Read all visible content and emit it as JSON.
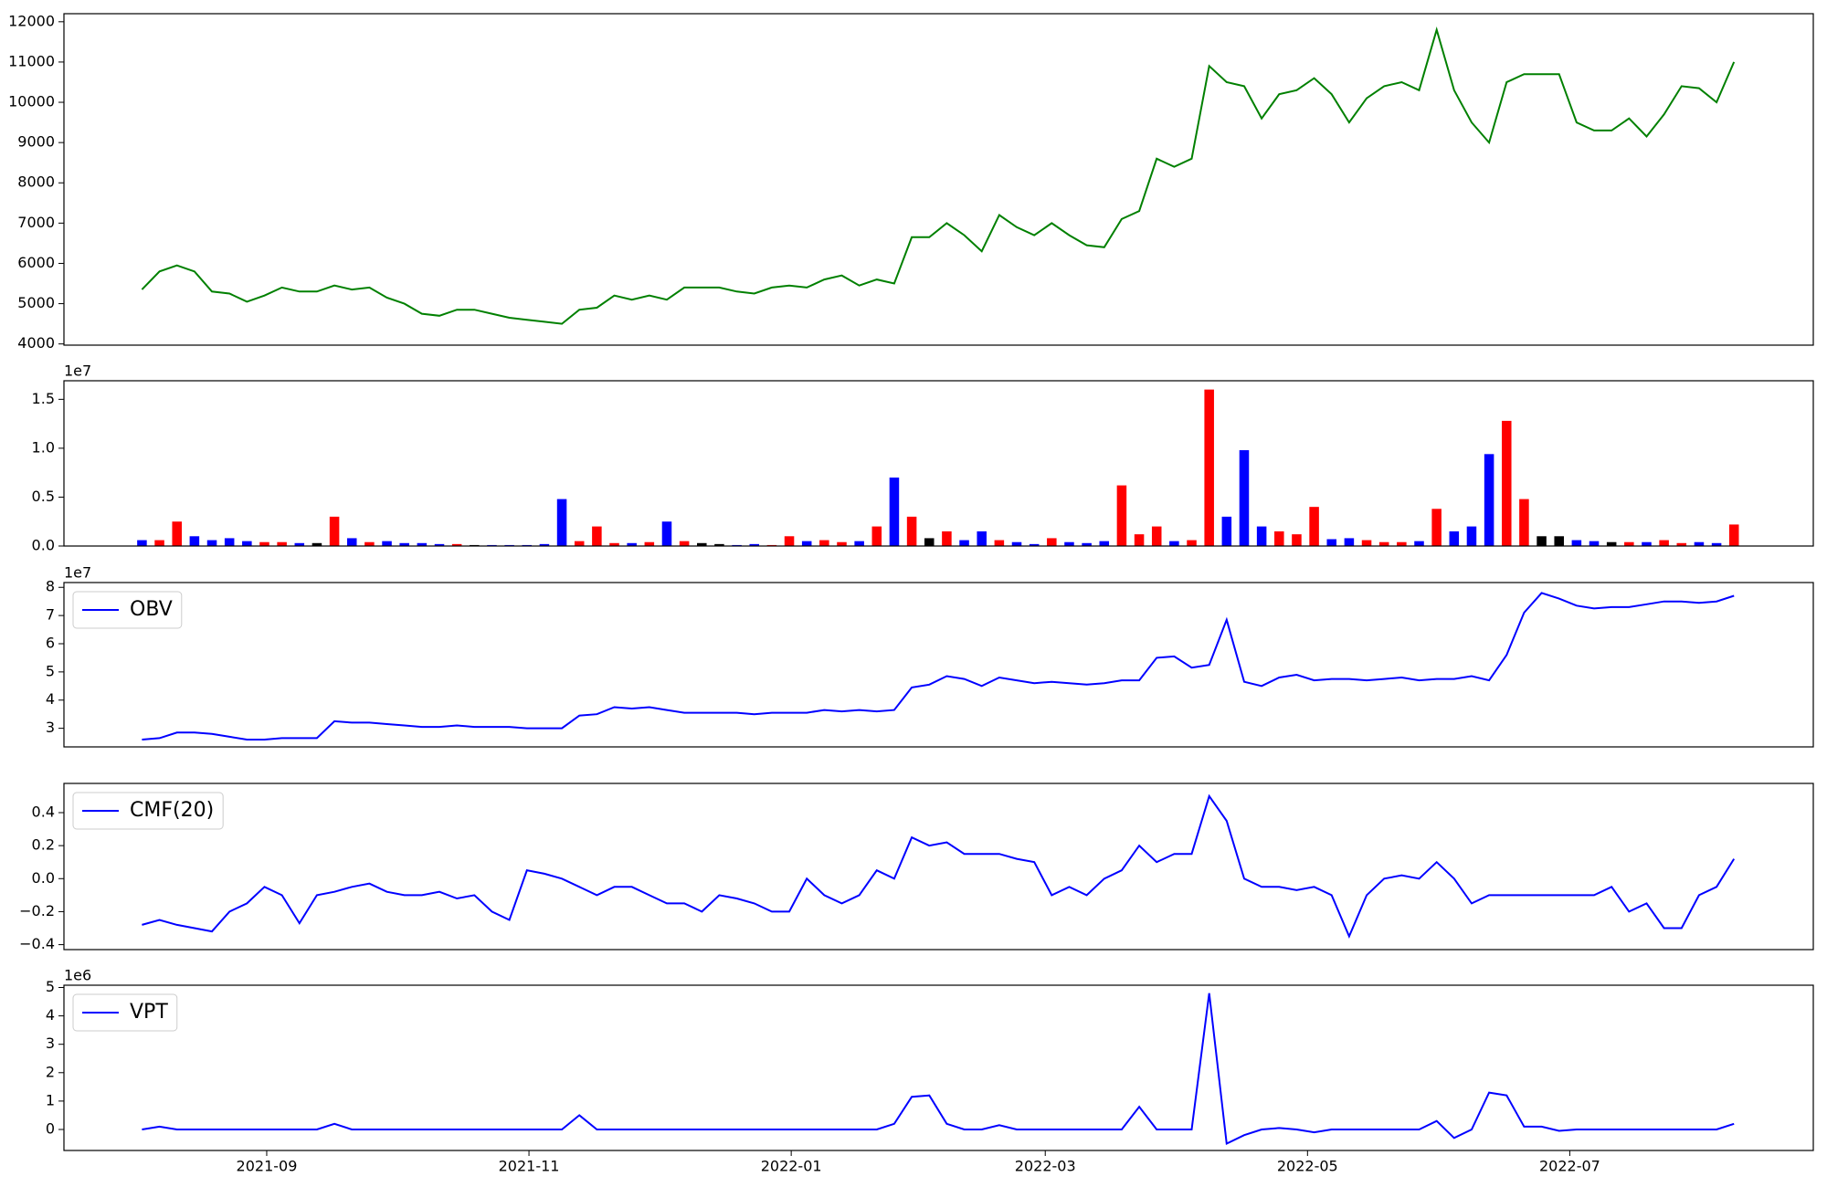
{
  "chart_data": [
    {
      "type": "line",
      "color": "green",
      "xlim": [
        -4.46,
        95.53
      ],
      "ylim": [
        3970,
        12200
      ],
      "yticks": [
        4000,
        5000,
        6000,
        7000,
        8000,
        9000,
        10000,
        11000,
        12000
      ],
      "values": [
        5350,
        5800,
        5950,
        5800,
        5300,
        5250,
        5050,
        5200,
        5400,
        5300,
        5300,
        5450,
        5350,
        5400,
        5150,
        5000,
        4750,
        4700,
        4850,
        4850,
        4750,
        4650,
        4600,
        4550,
        4500,
        4850,
        4900,
        5200,
        5100,
        5200,
        5100,
        5400,
        5400,
        5400,
        5300,
        5250,
        5400,
        5450,
        5400,
        5600,
        5700,
        5450,
        5600,
        5500,
        6650,
        6650,
        7000,
        6700,
        6300,
        7200,
        6900,
        6700,
        7000,
        6700,
        6450,
        6400,
        7100,
        7300,
        8600,
        8400,
        8600,
        10900,
        10500,
        10400,
        9600,
        10200,
        10300,
        10600,
        10200,
        9500,
        10100,
        10400,
        10500,
        10300,
        11800,
        10300,
        9500,
        9000,
        10500,
        10700,
        10700,
        10700,
        9500,
        9300,
        9300,
        9600,
        9150,
        9700,
        10400,
        10350,
        10000,
        11000
      ]
    },
    {
      "type": "bar",
      "offset_label": "1e7",
      "up_color": "red",
      "down_color": "blue",
      "flat_color": "black",
      "xlim": [
        -4.46,
        95.53
      ],
      "ylim": [
        0,
        1.69
      ],
      "yticks": [
        {
          "value": 0,
          "label": "0.0"
        },
        {
          "value": 0.5,
          "label": "0.5"
        },
        {
          "value": 1,
          "label": "1.0"
        },
        {
          "value": 1.5,
          "label": "1.5"
        }
      ],
      "values": [
        0.06,
        0.06,
        0.25,
        0.1,
        0.06,
        0.08,
        0.05,
        0.04,
        0.04,
        0.03,
        0.03,
        0.3,
        0.08,
        0.04,
        0.05,
        0.03,
        0.03,
        0.02,
        0.02,
        0.01,
        0.01,
        0.01,
        0.01,
        0.02,
        0.48,
        0.05,
        0.2,
        0.03,
        0.03,
        0.04,
        0.25,
        0.05,
        0.03,
        0.02,
        0.01,
        0.02,
        0.01,
        0.1,
        0.05,
        0.06,
        0.04,
        0.05,
        0.2,
        0.7,
        0.3,
        0.08,
        0.15,
        0.06,
        0.15,
        0.06,
        0.04,
        0.02,
        0.08,
        0.04,
        0.03,
        0.05,
        0.62,
        0.12,
        0.2,
        0.05,
        0.06,
        1.6,
        0.3,
        0.98,
        0.2,
        0.15,
        0.12,
        0.4,
        0.07,
        0.08,
        0.06,
        0.04,
        0.04,
        0.05,
        0.38,
        0.15,
        0.2,
        0.94,
        1.28,
        0.48,
        0.1,
        0.1,
        0.06,
        0.05,
        0.04,
        0.04,
        0.04,
        0.06,
        0.03,
        0.04,
        0.03,
        0.22
      ]
    },
    {
      "type": "line",
      "offset_label": "1e7",
      "legend": "upper left",
      "xlim": [
        -4.46,
        95.53
      ],
      "ylim": [
        2.34,
        8.17
      ],
      "yticks": [
        3,
        4,
        5,
        6,
        7,
        8
      ],
      "series": [
        {
          "name": "OBV",
          "color": "blue",
          "values": [
            2.6,
            2.65,
            2.85,
            2.85,
            2.8,
            2.7,
            2.6,
            2.6,
            2.65,
            2.65,
            2.65,
            3.25,
            3.2,
            3.2,
            3.15,
            3.1,
            3.05,
            3.05,
            3.1,
            3.05,
            3.05,
            3.05,
            3.0,
            3.0,
            3.0,
            3.45,
            3.5,
            3.75,
            3.7,
            3.75,
            3.65,
            3.55,
            3.55,
            3.55,
            3.55,
            3.5,
            3.55,
            3.55,
            3.55,
            3.65,
            3.6,
            3.65,
            3.6,
            3.65,
            4.45,
            4.55,
            4.85,
            4.75,
            4.5,
            4.8,
            4.7,
            4.6,
            4.65,
            4.6,
            4.55,
            4.6,
            4.7,
            4.7,
            5.5,
            5.55,
            5.15,
            5.25,
            6.85,
            4.65,
            4.5,
            4.8,
            4.9,
            4.7,
            4.75,
            4.75,
            4.7,
            4.75,
            4.8,
            4.7,
            4.75,
            4.75,
            4.85,
            4.7,
            5.6,
            7.1,
            7.8,
            7.6,
            7.35,
            7.25,
            7.3,
            7.3,
            7.4,
            7.5,
            7.5,
            7.45,
            7.5,
            7.7
          ]
        }
      ]
    },
    {
      "type": "line",
      "legend": "upper left",
      "xlim": [
        -4.46,
        95.53
      ],
      "ylim": [
        -0.43,
        0.577
      ],
      "yticks": [
        {
          "value": -0.4,
          "label": "−0.4"
        },
        {
          "value": -0.2,
          "label": "−0.2"
        },
        {
          "value": 0,
          "label": "0.0"
        },
        {
          "value": 0.2,
          "label": "0.2"
        },
        {
          "value": 0.4,
          "label": "0.4"
        }
      ],
      "series": [
        {
          "name": "CMF(20)",
          "color": "blue",
          "values": [
            -0.28,
            -0.25,
            -0.28,
            -0.3,
            -0.32,
            -0.2,
            -0.15,
            -0.05,
            -0.1,
            -0.27,
            -0.1,
            -0.08,
            -0.05,
            -0.03,
            -0.08,
            -0.1,
            -0.1,
            -0.08,
            -0.12,
            -0.1,
            -0.2,
            -0.25,
            0.05,
            0.03,
            0.0,
            -0.05,
            -0.1,
            -0.05,
            -0.05,
            -0.1,
            -0.15,
            -0.15,
            -0.2,
            -0.1,
            -0.12,
            -0.15,
            -0.2,
            -0.2,
            0.0,
            -0.1,
            -0.15,
            -0.1,
            0.05,
            0.0,
            0.25,
            0.2,
            0.22,
            0.15,
            0.15,
            0.15,
            0.12,
            0.1,
            -0.1,
            -0.05,
            -0.1,
            0.0,
            0.05,
            0.2,
            0.1,
            0.15,
            0.15,
            0.5,
            0.35,
            0.0,
            -0.05,
            -0.05,
            -0.07,
            -0.05,
            -0.1,
            -0.35,
            -0.1,
            0.0,
            0.02,
            0.0,
            0.1,
            0.0,
            -0.15,
            -0.1,
            -0.1,
            -0.1,
            -0.1,
            -0.1,
            -0.1,
            -0.1,
            -0.05,
            -0.2,
            -0.15,
            -0.3,
            -0.3,
            -0.1,
            -0.05,
            0.12
          ]
        }
      ]
    },
    {
      "type": "line",
      "offset_label": "1e6",
      "legend": "upper left",
      "xlim": [
        -4.46,
        95.53
      ],
      "ylim": [
        -0.74,
        5.08
      ],
      "yticks": [
        0,
        1,
        2,
        3,
        4,
        5
      ],
      "xticks": [
        {
          "value": 7.13,
          "label": "2021-09"
        },
        {
          "value": 22.12,
          "label": "2021-11"
        },
        {
          "value": 37.11,
          "label": "2022-01"
        },
        {
          "value": 51.63,
          "label": "2022-03"
        },
        {
          "value": 66.62,
          "label": "2022-05"
        },
        {
          "value": 81.61,
          "label": "2022-07"
        }
      ],
      "series": [
        {
          "name": "VPT",
          "color": "blue",
          "values": [
            0,
            0.1,
            0,
            0,
            0,
            0,
            0,
            0,
            0,
            0,
            0,
            0.2,
            0,
            0,
            0,
            0,
            0,
            0,
            0,
            0,
            0,
            0,
            0,
            0,
            0,
            0.5,
            0,
            0,
            0,
            0,
            0,
            0,
            0,
            0,
            0,
            0,
            0,
            0,
            0,
            0,
            0,
            0,
            0,
            0.2,
            1.15,
            1.2,
            0.2,
            0,
            0,
            0.15,
            0,
            0,
            0,
            0,
            0,
            0,
            0,
            0.8,
            0,
            0,
            0,
            4.8,
            -0.5,
            -0.2,
            0,
            0.05,
            0,
            -0.1,
            0,
            0,
            0,
            0,
            0,
            0,
            0.3,
            -0.3,
            0,
            1.3,
            1.2,
            0.1,
            0.1,
            -0.05,
            0,
            0,
            0,
            0,
            0,
            0,
            0,
            0,
            0,
            0.2
          ]
        }
      ]
    }
  ]
}
